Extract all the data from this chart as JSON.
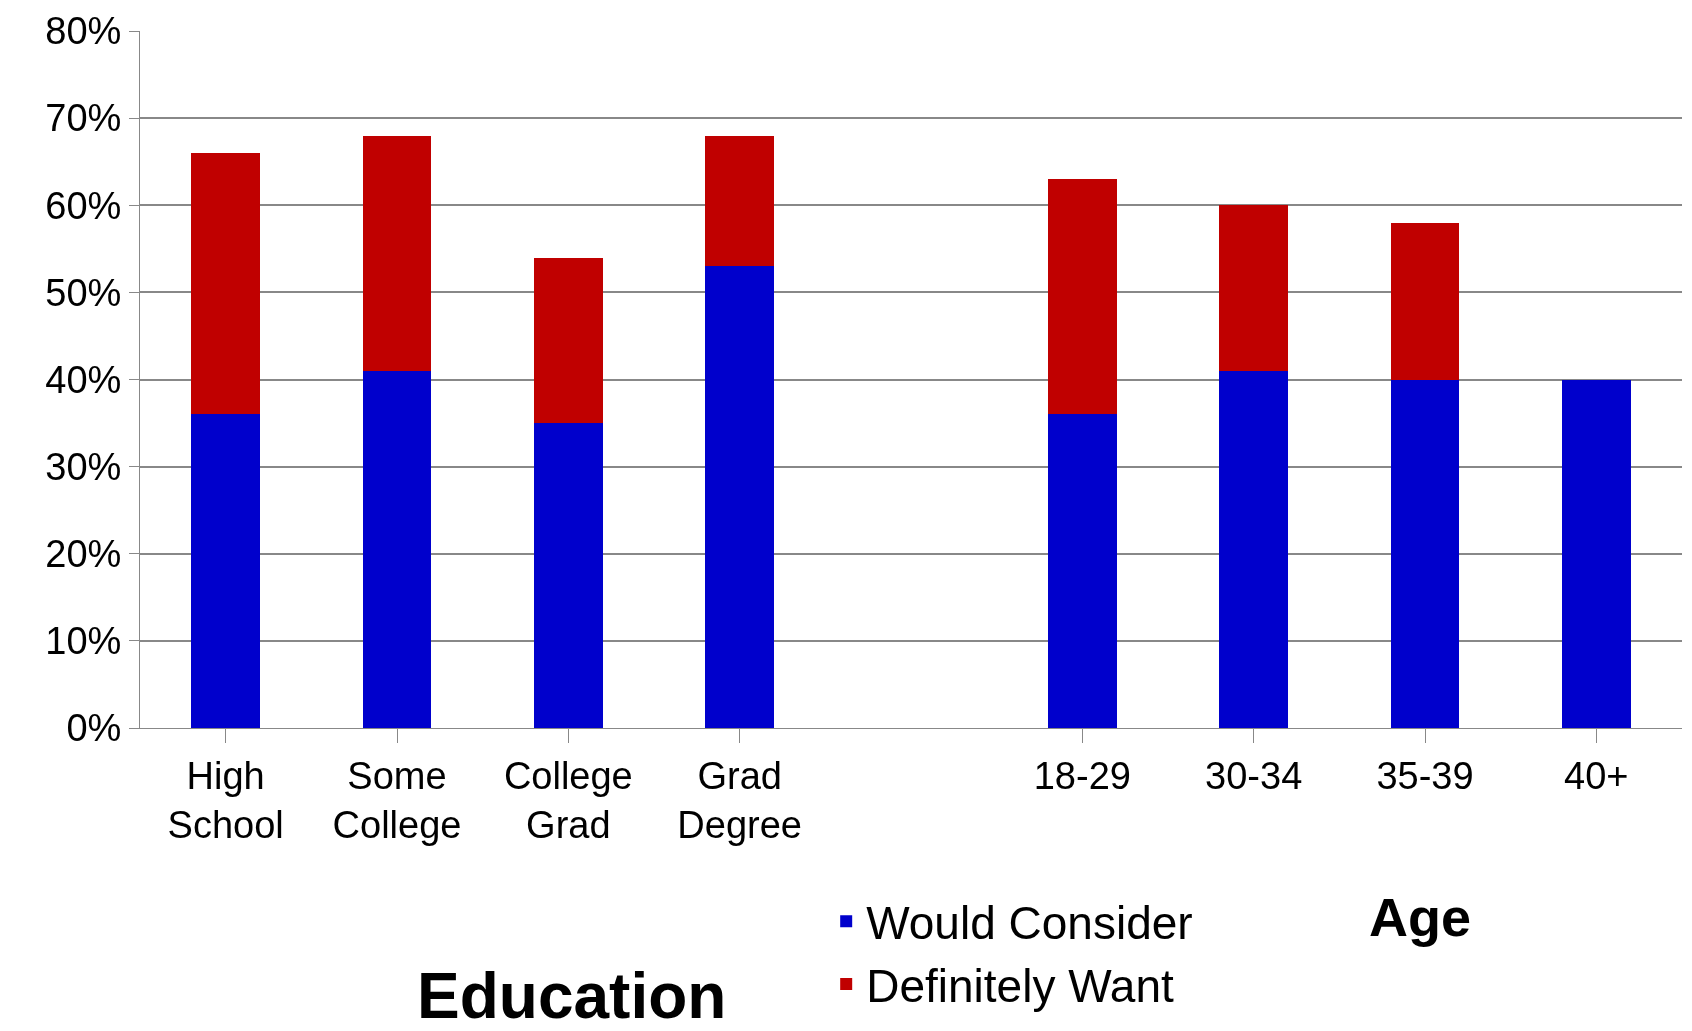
{
  "chart_data": {
    "type": "bar",
    "stacked": true,
    "categories": [
      "High School",
      "Some College",
      "College Grad",
      "Grad Degree",
      null,
      "18-29",
      "30-34",
      "35-39",
      "40+"
    ],
    "series": [
      {
        "name": "Would Consider",
        "color": "#0000cc",
        "values": [
          36,
          41,
          35,
          53,
          null,
          36,
          41,
          40,
          40
        ]
      },
      {
        "name": "Definitely Want",
        "color": "#c00000",
        "values": [
          30,
          27,
          19,
          15,
          null,
          27,
          19,
          18,
          null
        ]
      }
    ],
    "ylim": [
      0,
      80
    ],
    "yticks": [
      {
        "value": 0,
        "label": "0%"
      },
      {
        "value": 10,
        "label": "10%"
      },
      {
        "value": 20,
        "label": "20%"
      },
      {
        "value": 30,
        "label": "30%"
      },
      {
        "value": 40,
        "label": "40%"
      },
      {
        "value": 50,
        "label": "50%"
      },
      {
        "value": 60,
        "label": "60%"
      },
      {
        "value": 70,
        "label": "70%"
      },
      {
        "value": 80,
        "label": "80%"
      }
    ],
    "grid": "y",
    "legend": "bottom",
    "annotations": [
      "Education",
      "Age"
    ]
  }
}
